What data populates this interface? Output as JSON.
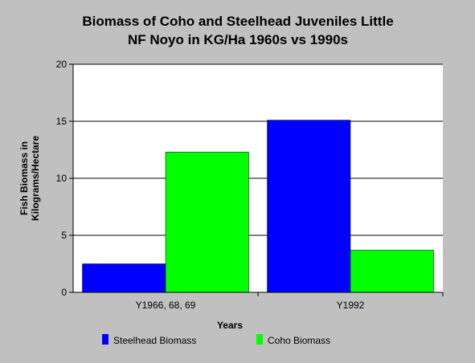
{
  "chart_data": {
    "type": "bar",
    "title": "Biomass of Coho and Steelhead Juveniles Little",
    "subtitle": "NF Noyo in KG/Ha 1960s vs 1990s",
    "xlabel": "Years",
    "ylabel_line1": "Fish Biomass in",
    "ylabel_line2": "Kilograms/Hectare",
    "categories": [
      "Y1966, 68, 69",
      "Y1992"
    ],
    "ylim": [
      0,
      20
    ],
    "yticks": [
      0,
      5,
      10,
      15,
      20
    ],
    "grid": true,
    "legend_position": "bottom",
    "series": [
      {
        "name": "Steelhead Biomass",
        "color": "#0000ff",
        "values": [
          2.5,
          15.1
        ]
      },
      {
        "name": "Coho Biomass",
        "color": "#00ff00",
        "values": [
          12.3,
          3.7
        ]
      }
    ]
  }
}
